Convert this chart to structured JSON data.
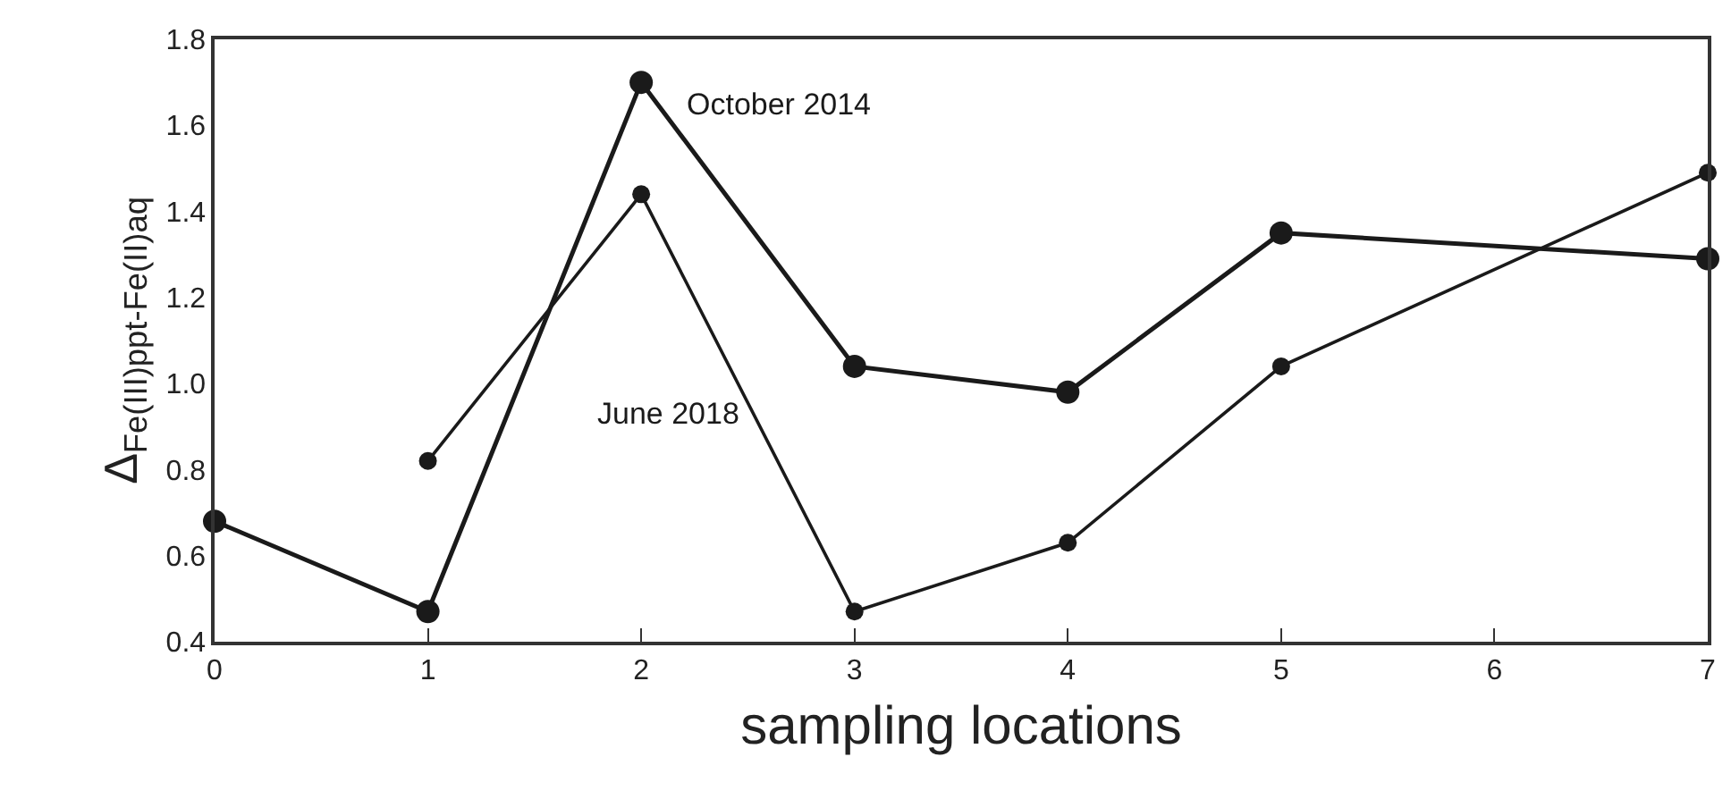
{
  "chart_data": {
    "type": "line",
    "xlabel": "sampling locations",
    "ylabel": "Δ$_{Fe(III)ppt-Fe(II)aq}$",
    "series": [
      {
        "name": "October 2014",
        "color": "#1a1a1a",
        "x": [
          0,
          1,
          2,
          3,
          4,
          5,
          7
        ],
        "values": [
          0.68,
          0.47,
          1.7,
          1.04,
          0.98,
          1.35,
          1.29
        ]
      },
      {
        "name": "June 2018",
        "color": "#1a1a1a",
        "x": [
          1,
          2,
          3,
          4,
          5,
          7
        ],
        "values": [
          0.82,
          1.44,
          0.47,
          0.63,
          1.04,
          1.49
        ]
      }
    ],
    "xlim": [
      0,
      7
    ],
    "xticks": [
      0,
      1,
      2,
      3,
      4,
      5,
      6,
      7
    ],
    "ylim": [
      0.4,
      1.8
    ],
    "yticks": [
      {
        "value": 0.4,
        "label": "0.4"
      },
      {
        "value": 0.6,
        "label": "0.6"
      },
      {
        "value": 0.8,
        "label": "0.8"
      },
      {
        "value": 1.0,
        "label": "1.0"
      },
      {
        "value": 1.2,
        "label": "1.2"
      },
      {
        "value": 1.4,
        "label": "1.4"
      },
      {
        "value": 1.6,
        "label": "1.6"
      },
      {
        "value": 1.8,
        "label": "1.8"
      }
    ],
    "legend": false,
    "marker": "circle",
    "line_style": "solid"
  }
}
